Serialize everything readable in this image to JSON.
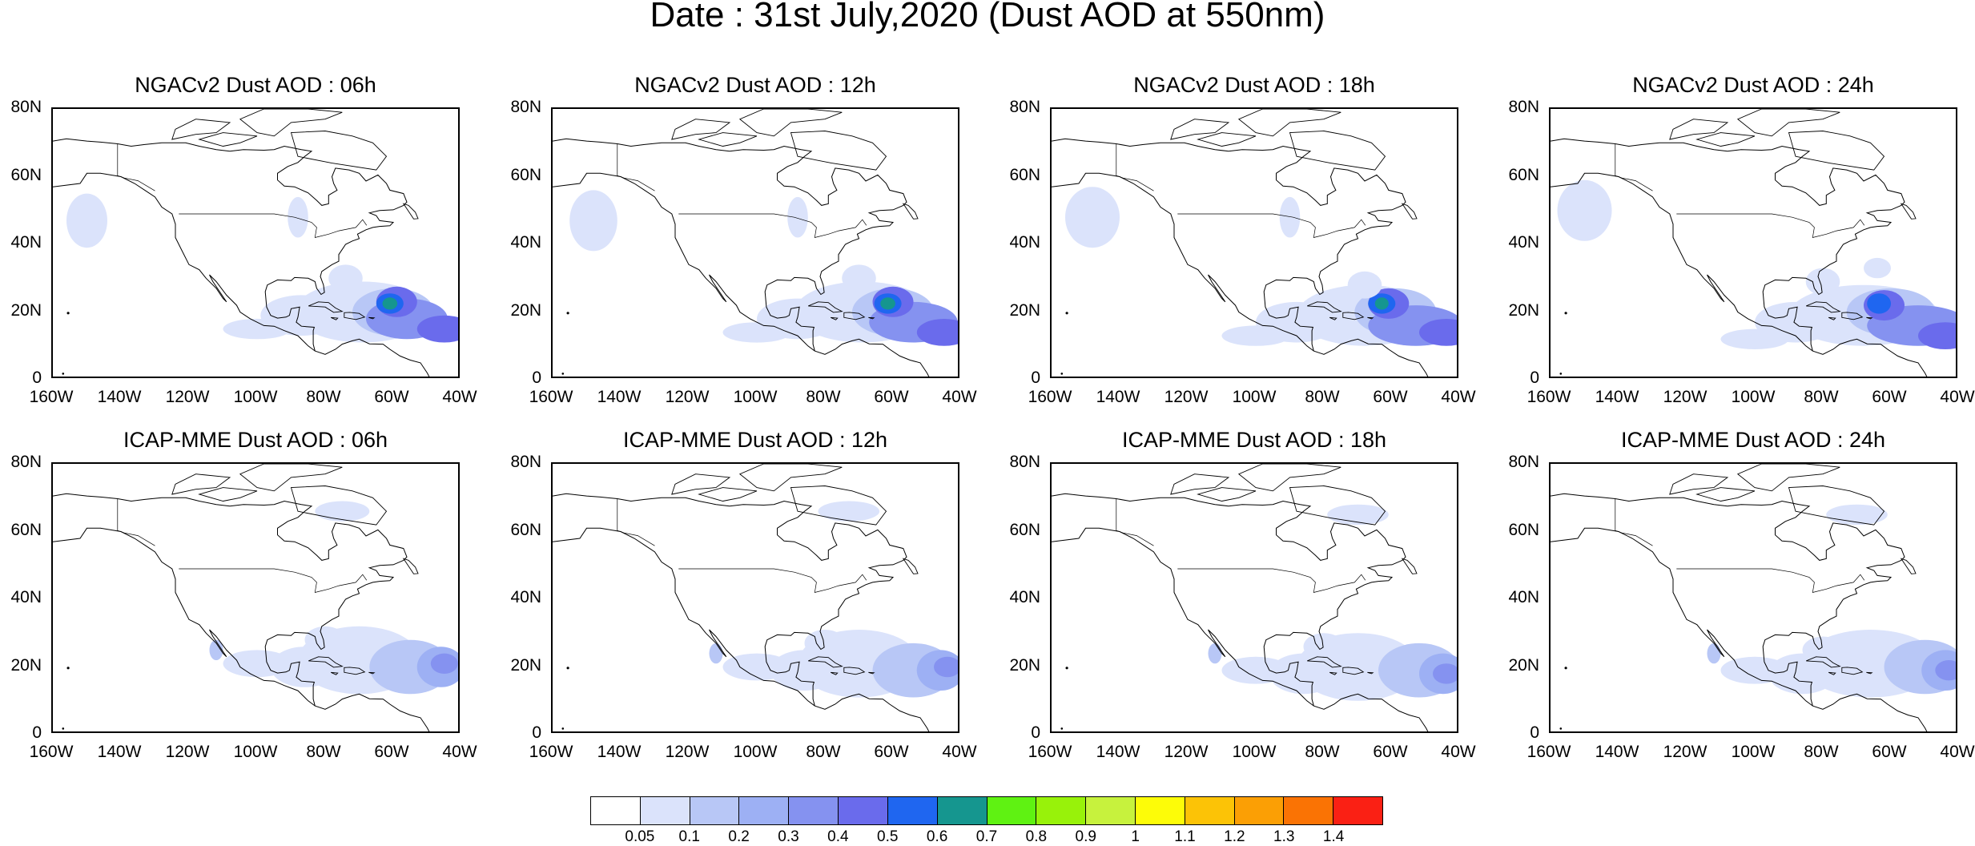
{
  "figure": {
    "title": "Date : 31st July,2020 (Dust AOD at 550nm)",
    "panels": [
      {
        "title": "NGACv2 Dust AOD : 06h",
        "model": "NGACv2",
        "hour": "06h",
        "peak_aod": 0.6
      },
      {
        "title": "NGACv2 Dust AOD : 12h",
        "model": "NGACv2",
        "hour": "12h",
        "peak_aod": 0.6
      },
      {
        "title": "NGACv2 Dust AOD : 18h",
        "model": "NGACv2",
        "hour": "18h",
        "peak_aod": 0.6
      },
      {
        "title": "NGACv2 Dust AOD : 24h",
        "model": "NGACv2",
        "hour": "24h",
        "peak_aod": 0.5
      },
      {
        "title": "ICAP-MME Dust AOD : 06h",
        "model": "ICAP-MME",
        "hour": "06h",
        "peak_aod": 0.3
      },
      {
        "title": "ICAP-MME Dust AOD : 12h",
        "model": "ICAP-MME",
        "hour": "12h",
        "peak_aod": 0.3
      },
      {
        "title": "ICAP-MME Dust AOD : 18h",
        "model": "ICAP-MME",
        "hour": "18h",
        "peak_aod": 0.3
      },
      {
        "title": "ICAP-MME Dust AOD : 24h",
        "model": "ICAP-MME",
        "hour": "24h",
        "peak_aod": 0.3
      }
    ],
    "lat_ticks": [
      "80N",
      "60N",
      "40N",
      "20N",
      "0"
    ],
    "lon_ticks": [
      "160W",
      "140W",
      "120W",
      "100W",
      "80W",
      "60W",
      "40W"
    ],
    "lon_range": [
      -160,
      -40
    ],
    "lat_range": [
      0,
      80
    ]
  },
  "colorbar": {
    "labels": [
      "0.05",
      "0.1",
      "0.2",
      "0.3",
      "0.4",
      "0.5",
      "0.6",
      "0.7",
      "0.8",
      "0.9",
      "1",
      "1.1",
      "1.2",
      "1.3",
      "1.4"
    ],
    "colors": [
      "#ffffff",
      "#dbe3fb",
      "#b8c7f6",
      "#9db0f4",
      "#8592f0",
      "#6a6bec",
      "#1f66f0",
      "#15968f",
      "#5ff212",
      "#98f20a",
      "#c7f23d",
      "#fdfc08",
      "#fcc306",
      "#fb9f05",
      "#fa7304",
      "#fa2014"
    ]
  }
}
